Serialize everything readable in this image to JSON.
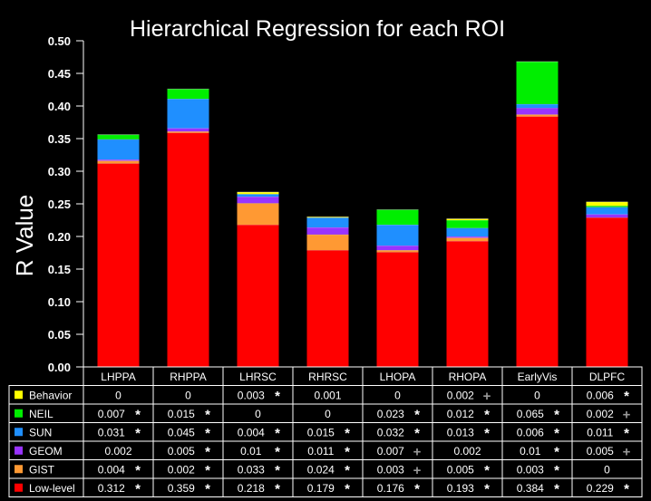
{
  "chart_data": {
    "type": "bar",
    "stacked": true,
    "title": "Hierarchical Regression for each ROI",
    "ylabel": "R Value",
    "ylim": [
      0,
      0.5
    ],
    "yticks": [
      "0.00",
      "0.05",
      "0.10",
      "0.15",
      "0.20",
      "0.25",
      "0.30",
      "0.35",
      "0.40",
      "0.45",
      "0.50"
    ],
    "grid": false,
    "categories": [
      "LHPPA",
      "RHPPA",
      "LHRSC",
      "RHRSC",
      "LHOPA",
      "RHOPA",
      "EarlyVis",
      "DLPFC"
    ],
    "series": [
      {
        "name": "Low-level",
        "color": "#ff0000",
        "values": [
          0.312,
          0.359,
          0.218,
          0.179,
          0.176,
          0.193,
          0.384,
          0.229
        ],
        "labels": [
          "0.312",
          "0.359",
          "0.218",
          "0.179",
          "0.176",
          "0.193",
          "0.384",
          "0.229"
        ],
        "marks": [
          "*",
          "*",
          "*",
          "*",
          "*",
          "*",
          "*",
          "*"
        ]
      },
      {
        "name": "GIST",
        "color": "#ff9933",
        "values": [
          0.004,
          0.002,
          0.033,
          0.024,
          0.003,
          0.005,
          0.003,
          0
        ],
        "labels": [
          "0.004",
          "0.002",
          "0.033",
          "0.024",
          "0.003",
          "0.005",
          "0.003",
          "0"
        ],
        "marks": [
          "*",
          "*",
          "*",
          "*",
          "+",
          "*",
          "*",
          ""
        ]
      },
      {
        "name": "GEOM",
        "color": "#9933ff",
        "values": [
          0.002,
          0.005,
          0.01,
          0.011,
          0.007,
          0.002,
          0.01,
          0.005
        ],
        "labels": [
          "0.002",
          "0.005",
          "0.01",
          "0.011",
          "0.007",
          "0.002",
          "0.01",
          "0.005"
        ],
        "marks": [
          "",
          "*",
          "*",
          "*",
          "+",
          "",
          "*",
          "+"
        ]
      },
      {
        "name": "SUN",
        "color": "#1f8fff",
        "values": [
          0.031,
          0.045,
          0.004,
          0.015,
          0.032,
          0.013,
          0.006,
          0.011
        ],
        "labels": [
          "0.031",
          "0.045",
          "0.004",
          "0.015",
          "0.032",
          "0.013",
          "0.006",
          "0.011"
        ],
        "marks": [
          "*",
          "*",
          "*",
          "*",
          "*",
          "*",
          "*",
          "*"
        ]
      },
      {
        "name": "NEIL",
        "color": "#00ee00",
        "values": [
          0.007,
          0.015,
          0,
          0,
          0.023,
          0.012,
          0.065,
          0.002
        ],
        "labels": [
          "0.007",
          "0.015",
          "0",
          "0",
          "0.023",
          "0.012",
          "0.065",
          "0.002"
        ],
        "marks": [
          "*",
          "*",
          "",
          "",
          "*",
          "*",
          "*",
          "+"
        ]
      },
      {
        "name": "Behavior",
        "color": "#ffff00",
        "values": [
          0,
          0,
          0.003,
          0.001,
          0,
          0.002,
          0,
          0.006
        ],
        "labels": [
          "0",
          "0",
          "0.003",
          "0.001",
          "0",
          "0.002",
          "0",
          "0.006"
        ],
        "marks": [
          "",
          "",
          "*",
          "",
          "",
          "+",
          "",
          "*"
        ]
      }
    ],
    "table_row_order": [
      "Behavior",
      "NEIL",
      "SUN",
      "GEOM",
      "GIST",
      "Low-level"
    ]
  }
}
